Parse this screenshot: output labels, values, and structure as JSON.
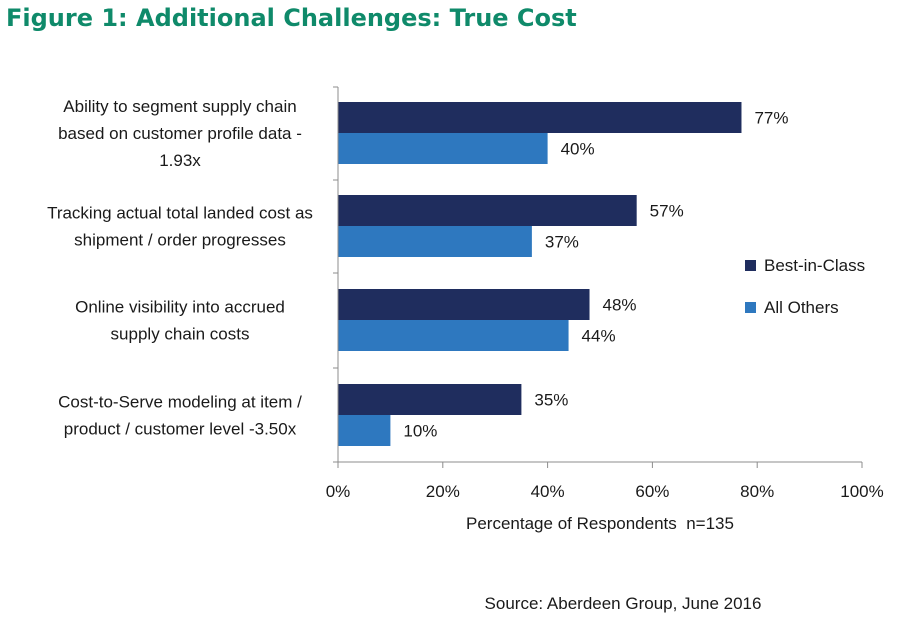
{
  "chart_data": {
    "type": "bar",
    "orientation": "horizontal",
    "title": "Figure 1: Additional Challenges: True Cost",
    "categories": [
      [
        "Ability to segment supply chain",
        "based on customer profile data -",
        "1.93x"
      ],
      [
        "Tracking actual total landed cost as",
        "shipment / order progresses"
      ],
      [
        "Online visibility into accrued",
        "supply chain costs"
      ],
      [
        "Cost-to-Serve modeling at item /",
        "product / customer level -3.50x"
      ]
    ],
    "series": [
      {
        "name": "Best-in-Class",
        "values": [
          77,
          57,
          48,
          35
        ],
        "labels": [
          "77%",
          "57%",
          "48%",
          "35%"
        ],
        "color": "#1f2d5e"
      },
      {
        "name": "All Others",
        "values": [
          40,
          37,
          44,
          10
        ],
        "labels": [
          "40%",
          "37%",
          "44%",
          "10%"
        ],
        "color": "#2e78bf"
      }
    ],
    "xlabel": "Percentage of Respondents  n=135",
    "ylabel": "",
    "xlim": [
      0,
      100
    ],
    "xticks": [
      "0%",
      "20%",
      "40%",
      "60%",
      "80%",
      "100%"
    ],
    "legend_position": "right",
    "grid": false
  },
  "source": "Source: Aberdeen Group, June 2016"
}
